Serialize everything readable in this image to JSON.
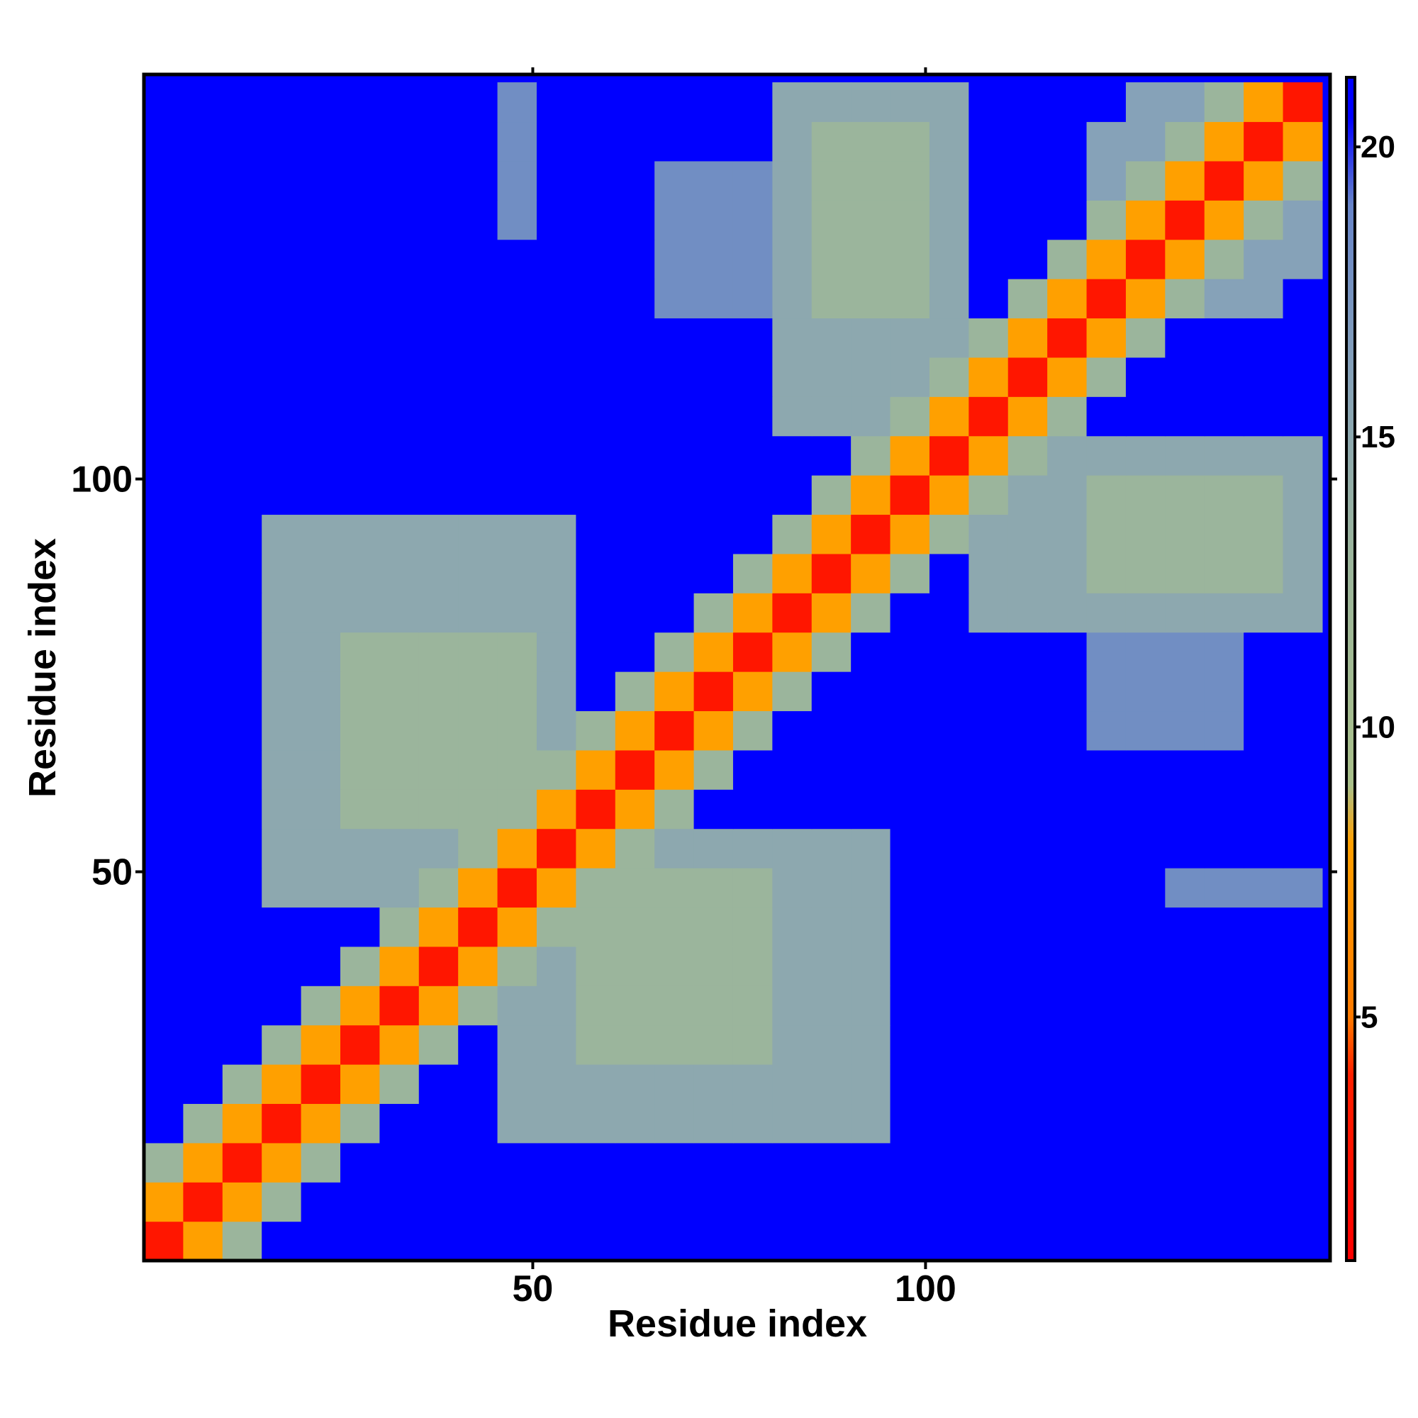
{
  "chart_data": {
    "type": "heatmap",
    "x_label": "Residue index",
    "y_label": "Residue index",
    "x": [
      3,
      8,
      13,
      18,
      23,
      28,
      33,
      38,
      43,
      48,
      53,
      58,
      63,
      68,
      73,
      78,
      83,
      88,
      93,
      98,
      103,
      108,
      113,
      118,
      123,
      128,
      133,
      138,
      143,
      148
    ],
    "y": [
      3,
      8,
      13,
      18,
      23,
      28,
      33,
      38,
      43,
      48,
      53,
      58,
      63,
      68,
      73,
      78,
      83,
      88,
      93,
      98,
      103,
      108,
      113,
      118,
      123,
      128,
      133,
      138,
      143,
      148
    ],
    "xlim": [
      0.5,
      151.5
    ],
    "ylim": [
      0.5,
      151.5
    ],
    "xticks": [
      50,
      100
    ],
    "yticks": [
      50,
      100
    ],
    "zlim": [
      0.8,
      21.2
    ],
    "colorbar_ticks": [
      5,
      10,
      15,
      20
    ],
    "colorscale": [
      [
        0.8,
        "#ff0000"
      ],
      [
        4,
        "#ff2000"
      ],
      [
        5,
        "#ff7a00"
      ],
      [
        8,
        "#ffa000"
      ],
      [
        9,
        "#a9c08a"
      ],
      [
        13,
        "#9bb59c"
      ],
      [
        16,
        "#86a2b8"
      ],
      [
        19,
        "#6784c8"
      ],
      [
        20.5,
        "#0000ff"
      ],
      [
        21.2,
        "#0000ff"
      ]
    ],
    "z": [
      [
        3,
        8,
        13,
        21,
        21,
        21,
        21,
        21,
        21,
        21,
        21,
        21,
        21,
        21,
        21,
        21,
        21,
        21,
        21,
        21,
        21,
        21,
        21,
        21,
        21,
        21,
        21,
        21,
        21,
        21
      ],
      [
        8,
        3,
        8,
        13,
        21,
        21,
        21,
        21,
        21,
        21,
        21,
        21,
        21,
        21,
        21,
        21,
        21,
        21,
        21,
        21,
        21,
        21,
        21,
        21,
        21,
        21,
        21,
        21,
        21,
        21
      ],
      [
        13,
        8,
        3,
        8,
        13,
        21,
        21,
        21,
        21,
        21,
        21,
        21,
        21,
        21,
        21,
        21,
        21,
        21,
        21,
        21,
        21,
        21,
        21,
        21,
        21,
        21,
        21,
        21,
        21,
        21
      ],
      [
        21,
        13,
        8,
        3,
        8,
        13,
        21,
        21,
        21,
        15,
        15,
        15,
        15,
        15,
        15,
        15,
        15,
        15,
        15,
        21,
        21,
        21,
        21,
        21,
        21,
        21,
        21,
        21,
        21,
        21
      ],
      [
        21,
        21,
        13,
        8,
        3,
        8,
        13,
        21,
        21,
        15,
        15,
        15,
        15,
        15,
        15,
        15,
        15,
        15,
        15,
        21,
        21,
        21,
        21,
        21,
        21,
        21,
        21,
        21,
        21,
        21
      ],
      [
        21,
        21,
        21,
        13,
        8,
        3,
        8,
        13,
        21,
        15,
        15,
        13,
        13,
        13,
        13,
        13,
        15,
        15,
        15,
        21,
        21,
        21,
        21,
        21,
        21,
        21,
        21,
        21,
        21,
        21
      ],
      [
        21,
        21,
        21,
        21,
        13,
        8,
        3,
        8,
        13,
        15,
        15,
        13,
        13,
        13,
        13,
        13,
        15,
        15,
        15,
        21,
        21,
        21,
        21,
        21,
        21,
        21,
        21,
        21,
        21,
        21
      ],
      [
        21,
        21,
        21,
        21,
        21,
        13,
        8,
        3,
        8,
        13,
        15,
        13,
        13,
        13,
        13,
        13,
        15,
        15,
        15,
        21,
        21,
        21,
        21,
        21,
        21,
        21,
        21,
        21,
        21,
        21
      ],
      [
        21,
        21,
        21,
        21,
        21,
        21,
        13,
        8,
        3,
        8,
        13,
        13,
        13,
        13,
        13,
        13,
        15,
        15,
        15,
        21,
        21,
        21,
        21,
        21,
        21,
        21,
        21,
        21,
        21,
        21
      ],
      [
        21,
        21,
        21,
        15,
        15,
        15,
        15,
        13,
        8,
        3,
        8,
        13,
        13,
        13,
        13,
        13,
        15,
        15,
        15,
        21,
        21,
        21,
        21,
        21,
        21,
        21,
        18,
        18,
        18,
        18
      ],
      [
        21,
        21,
        21,
        15,
        15,
        15,
        15,
        15,
        13,
        8,
        3,
        8,
        13,
        15,
        15,
        15,
        15,
        15,
        15,
        21,
        21,
        21,
        21,
        21,
        21,
        21,
        21,
        21,
        21,
        21
      ],
      [
        21,
        21,
        21,
        15,
        15,
        13,
        13,
        13,
        13,
        13,
        8,
        3,
        8,
        13,
        21,
        21,
        21,
        21,
        21,
        21,
        21,
        21,
        21,
        21,
        21,
        21,
        21,
        21,
        21,
        21
      ],
      [
        21,
        21,
        21,
        15,
        15,
        13,
        13,
        13,
        13,
        13,
        13,
        8,
        3,
        8,
        13,
        21,
        21,
        21,
        21,
        21,
        21,
        21,
        21,
        21,
        21,
        21,
        21,
        21,
        21,
        21
      ],
      [
        21,
        21,
        21,
        15,
        15,
        13,
        13,
        13,
        13,
        13,
        15,
        13,
        8,
        3,
        8,
        13,
        21,
        21,
        21,
        21,
        21,
        21,
        21,
        21,
        18,
        18,
        18,
        18,
        21,
        21
      ],
      [
        21,
        21,
        21,
        15,
        15,
        13,
        13,
        13,
        13,
        13,
        15,
        21,
        13,
        8,
        3,
        8,
        13,
        21,
        21,
        21,
        21,
        21,
        21,
        21,
        18,
        18,
        18,
        18,
        21,
        21
      ],
      [
        21,
        21,
        21,
        15,
        15,
        13,
        13,
        13,
        13,
        13,
        15,
        21,
        21,
        13,
        8,
        3,
        8,
        13,
        21,
        21,
        21,
        21,
        21,
        21,
        18,
        18,
        18,
        18,
        21,
        21
      ],
      [
        21,
        21,
        21,
        15,
        15,
        15,
        15,
        15,
        15,
        15,
        15,
        21,
        21,
        21,
        13,
        8,
        3,
        8,
        13,
        21,
        21,
        15,
        15,
        15,
        15,
        15,
        15,
        15,
        15,
        15
      ],
      [
        21,
        21,
        21,
        15,
        15,
        15,
        15,
        15,
        15,
        15,
        15,
        21,
        21,
        21,
        21,
        13,
        8,
        3,
        8,
        13,
        21,
        15,
        15,
        15,
        13,
        13,
        13,
        13,
        13,
        15
      ],
      [
        21,
        21,
        21,
        15,
        15,
        15,
        15,
        15,
        15,
        15,
        15,
        21,
        21,
        21,
        21,
        21,
        13,
        8,
        3,
        8,
        13,
        15,
        15,
        15,
        13,
        13,
        13,
        13,
        13,
        15
      ],
      [
        21,
        21,
        21,
        21,
        21,
        21,
        21,
        21,
        21,
        21,
        21,
        21,
        21,
        21,
        21,
        21,
        21,
        13,
        8,
        3,
        8,
        13,
        15,
        15,
        13,
        13,
        13,
        13,
        13,
        15
      ],
      [
        21,
        21,
        21,
        21,
        21,
        21,
        21,
        21,
        21,
        21,
        21,
        21,
        21,
        21,
        21,
        21,
        21,
        21,
        13,
        8,
        3,
        8,
        13,
        15,
        15,
        15,
        15,
        15,
        15,
        15
      ],
      [
        21,
        21,
        21,
        21,
        21,
        21,
        21,
        21,
        21,
        21,
        21,
        21,
        21,
        21,
        21,
        21,
        15,
        15,
        15,
        13,
        8,
        3,
        8,
        13,
        21,
        21,
        21,
        21,
        21,
        21
      ],
      [
        21,
        21,
        21,
        21,
        21,
        21,
        21,
        21,
        21,
        21,
        21,
        21,
        21,
        21,
        21,
        21,
        15,
        15,
        15,
        15,
        13,
        8,
        3,
        8,
        13,
        21,
        21,
        21,
        21,
        21
      ],
      [
        21,
        21,
        21,
        21,
        21,
        21,
        21,
        21,
        21,
        21,
        21,
        21,
        21,
        21,
        21,
        21,
        15,
        15,
        15,
        15,
        15,
        13,
        8,
        3,
        8,
        13,
        21,
        21,
        21,
        21
      ],
      [
        21,
        21,
        21,
        21,
        21,
        21,
        21,
        21,
        21,
        21,
        21,
        21,
        21,
        18,
        18,
        18,
        15,
        13,
        13,
        13,
        15,
        21,
        13,
        8,
        3,
        8,
        13,
        16,
        16,
        21
      ],
      [
        21,
        21,
        21,
        21,
        21,
        21,
        21,
        21,
        21,
        21,
        21,
        21,
        21,
        18,
        18,
        18,
        15,
        13,
        13,
        13,
        15,
        21,
        21,
        13,
        8,
        3,
        8,
        13,
        16,
        16
      ],
      [
        21,
        21,
        21,
        21,
        21,
        21,
        21,
        21,
        21,
        18,
        21,
        21,
        21,
        18,
        18,
        18,
        15,
        13,
        13,
        13,
        15,
        21,
        21,
        21,
        13,
        8,
        3,
        8,
        13,
        16
      ],
      [
        21,
        21,
        21,
        21,
        21,
        21,
        21,
        21,
        21,
        18,
        21,
        21,
        21,
        18,
        18,
        18,
        15,
        13,
        13,
        13,
        15,
        21,
        21,
        21,
        16,
        13,
        8,
        3,
        8,
        13
      ],
      [
        21,
        21,
        21,
        21,
        21,
        21,
        21,
        21,
        21,
        18,
        21,
        21,
        21,
        21,
        21,
        21,
        15,
        13,
        13,
        13,
        15,
        21,
        21,
        21,
        16,
        16,
        13,
        8,
        3,
        8
      ],
      [
        21,
        21,
        21,
        21,
        21,
        21,
        21,
        21,
        21,
        18,
        21,
        21,
        21,
        21,
        21,
        21,
        15,
        15,
        15,
        15,
        15,
        21,
        21,
        21,
        21,
        16,
        16,
        13,
        8,
        3
      ]
    ]
  }
}
